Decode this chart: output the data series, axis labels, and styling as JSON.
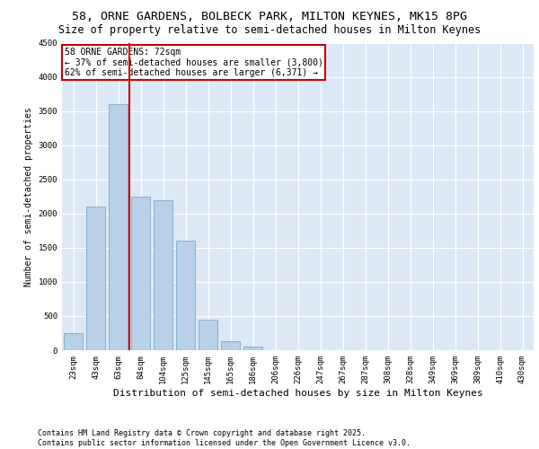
{
  "title_line1": "58, ORNE GARDENS, BOLBECK PARK, MILTON KEYNES, MK15 8PG",
  "title_line2": "Size of property relative to semi-detached houses in Milton Keynes",
  "xlabel": "Distribution of semi-detached houses by size in Milton Keynes",
  "ylabel": "Number of semi-detached properties",
  "categories": [
    "23sqm",
    "43sqm",
    "63sqm",
    "84sqm",
    "104sqm",
    "125sqm",
    "145sqm",
    "165sqm",
    "186sqm",
    "206sqm",
    "226sqm",
    "247sqm",
    "267sqm",
    "287sqm",
    "308sqm",
    "328sqm",
    "349sqm",
    "369sqm",
    "389sqm",
    "410sqm",
    "430sqm"
  ],
  "values": [
    250,
    2100,
    3600,
    2250,
    2200,
    1600,
    450,
    130,
    50,
    0,
    0,
    0,
    0,
    0,
    0,
    0,
    0,
    0,
    0,
    0,
    0
  ],
  "bar_color": "#b8d0e8",
  "bar_edge_color": "#7aaad0",
  "vline_color": "#cc0000",
  "annotation_title": "58 ORNE GARDENS: 72sqm",
  "annotation_line2": "← 37% of semi-detached houses are smaller (3,800)",
  "annotation_line3": "62% of semi-detached houses are larger (6,371) →",
  "annotation_box_color": "#cc0000",
  "ylim": [
    0,
    4500
  ],
  "yticks": [
    0,
    500,
    1000,
    1500,
    2000,
    2500,
    3000,
    3500,
    4000,
    4500
  ],
  "bg_color": "#dce8f5",
  "footer": "Contains HM Land Registry data © Crown copyright and database right 2025.\nContains public sector information licensed under the Open Government Licence v3.0.",
  "title_fontsize": 9.5,
  "subtitle_fontsize": 8.5,
  "xlabel_fontsize": 8,
  "ylabel_fontsize": 7,
  "tick_fontsize": 6.5,
  "footer_fontsize": 6,
  "ann_fontsize": 7
}
